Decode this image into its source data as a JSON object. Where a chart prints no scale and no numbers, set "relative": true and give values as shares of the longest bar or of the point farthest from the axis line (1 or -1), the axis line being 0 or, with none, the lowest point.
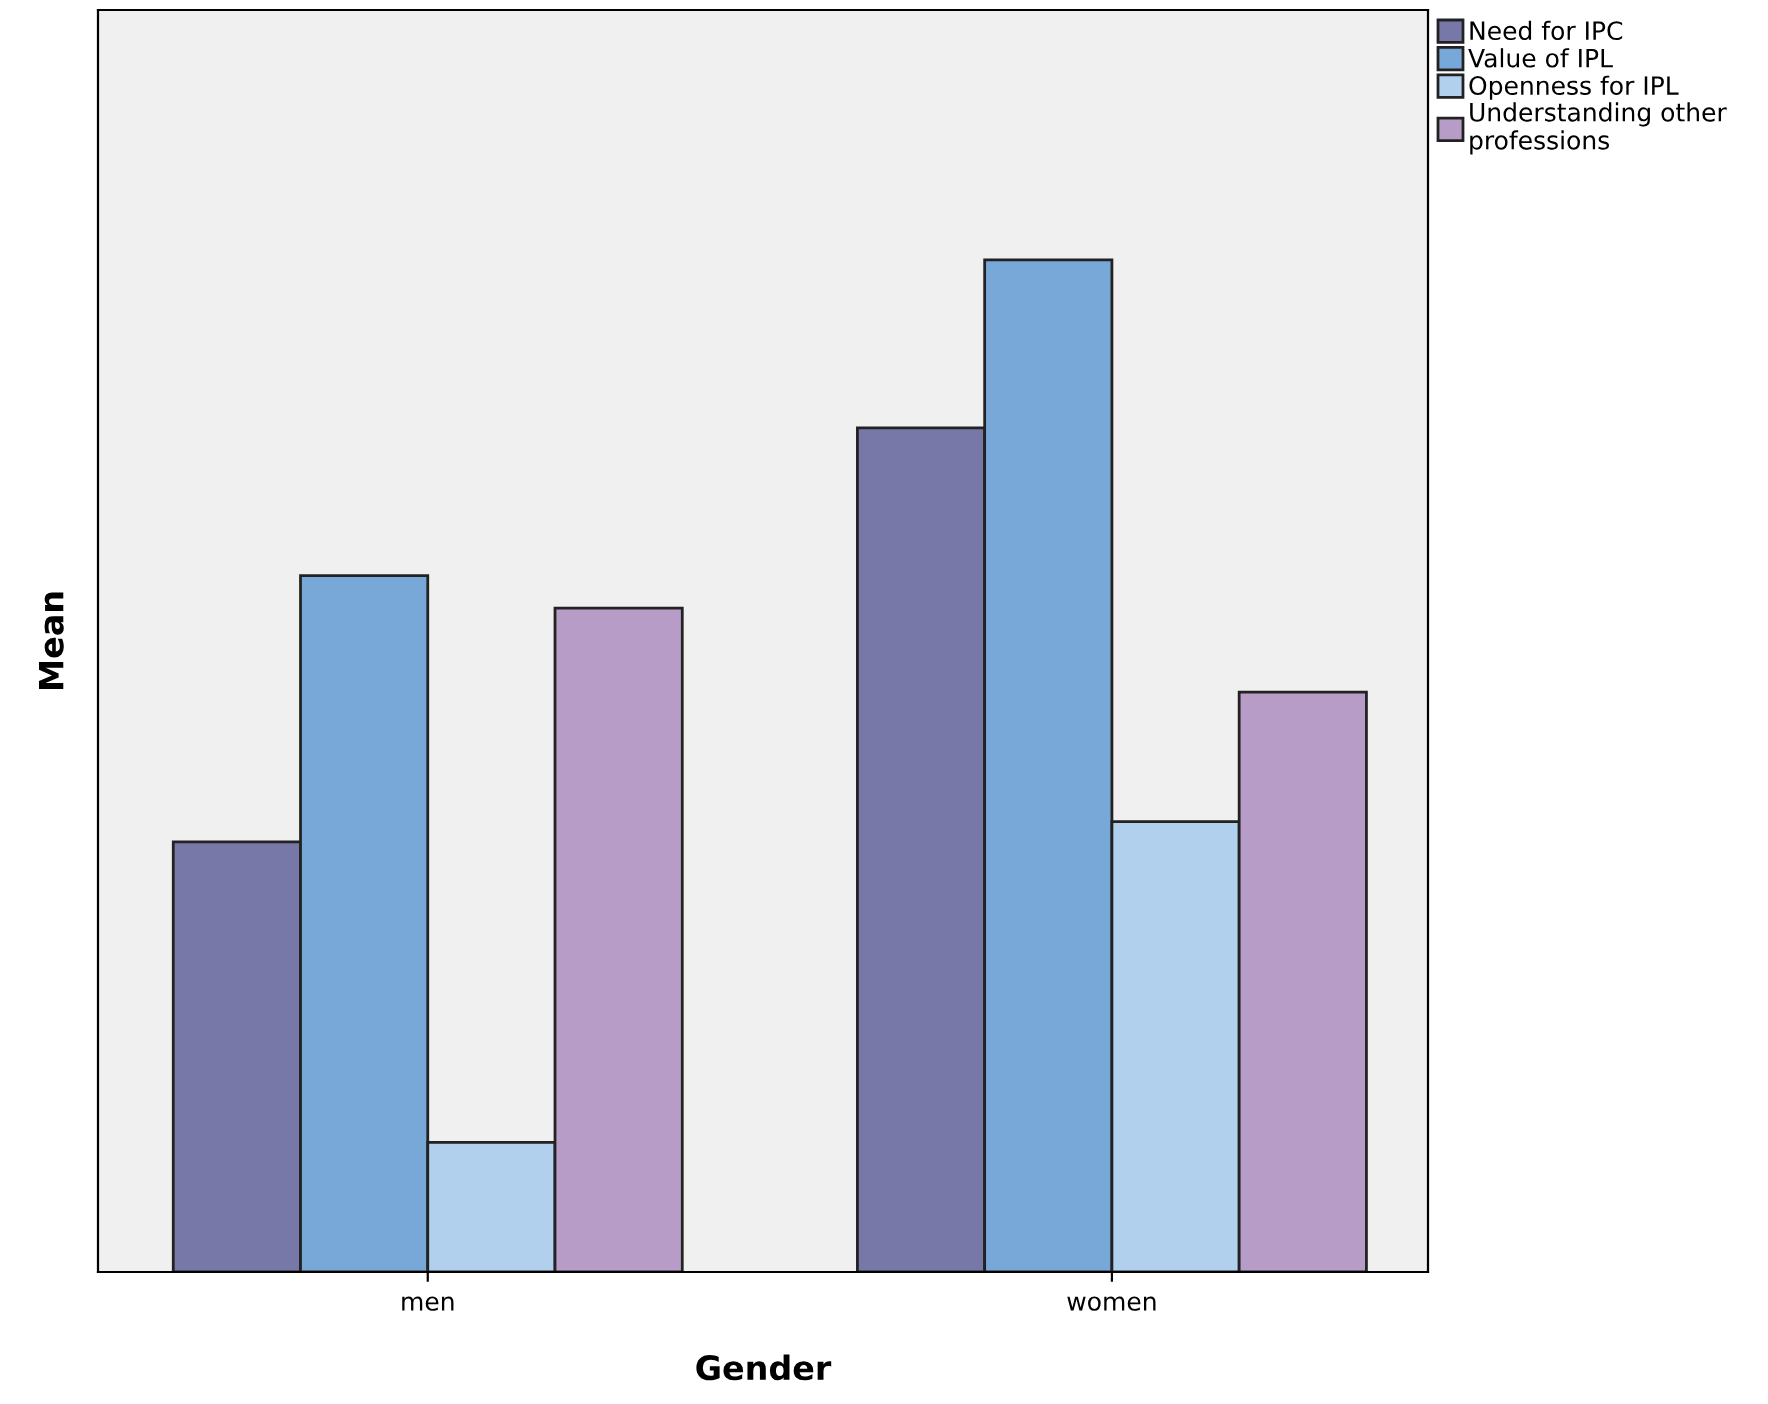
{
  "chart_data": {
    "type": "bar",
    "relative": true,
    "xlabel": "Gender",
    "ylabel": "Mean",
    "categories": [
      "men",
      "women"
    ],
    "series": [
      {
        "name": "Need for IPC",
        "color": "#7878a8",
        "values": [
          0.425,
          0.834
        ]
      },
      {
        "name": "Value of IPL",
        "color": "#78a8d8",
        "values": [
          0.688,
          1
        ]
      },
      {
        "name": "Openness for IPL",
        "color": "#b0d0ee",
        "values": [
          0.128,
          0.445
        ]
      },
      {
        "name": "Understanding other professions",
        "color": "#b89cc8",
        "values": [
          0.656,
          0.573
        ]
      }
    ],
    "legend": "top right",
    "grid": false
  }
}
